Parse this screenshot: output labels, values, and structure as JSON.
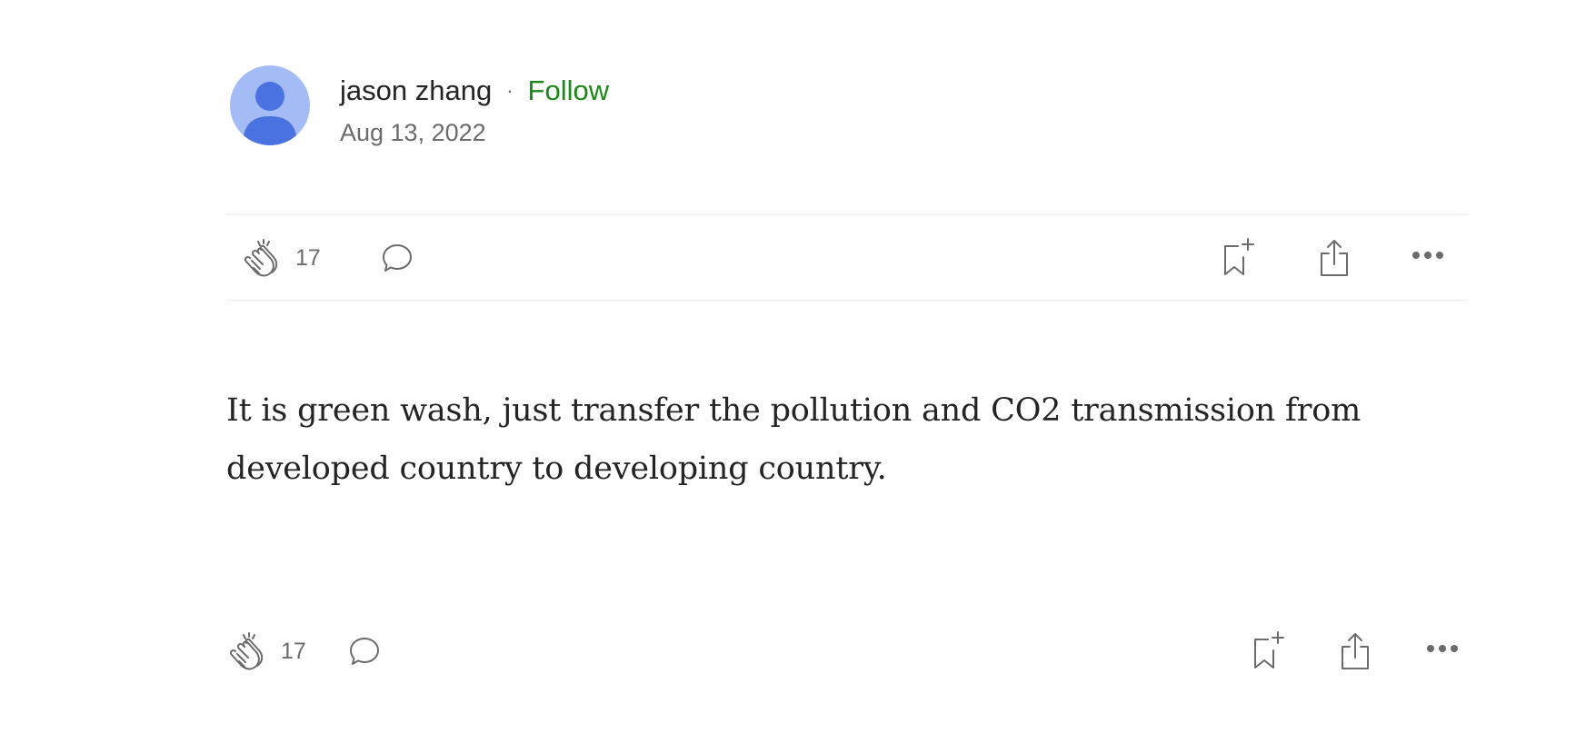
{
  "author": {
    "name": "jason zhang",
    "separator": "·",
    "follow_label": "Follow",
    "date": "Aug 13, 2022",
    "avatar_color": "#a3bcf5",
    "avatar_figure_color": "#4a72e0"
  },
  "top_actions": {
    "clap_count": "17",
    "icons": [
      "clap-icon",
      "comment-icon",
      "bookmark-add-icon",
      "share-icon",
      "more-icon"
    ]
  },
  "article": {
    "text": "It is green wash, just transfer the pollution and CO2 transmission from developed country to developing country."
  },
  "bottom_actions": {
    "clap_count": "17",
    "icons": [
      "clap-icon",
      "comment-icon",
      "bookmark-add-icon",
      "share-icon",
      "more-icon"
    ]
  },
  "colors": {
    "follow": "#1a8917",
    "text": "#242424",
    "muted": "#6b6b6b",
    "divider": "#f0f0f0"
  }
}
